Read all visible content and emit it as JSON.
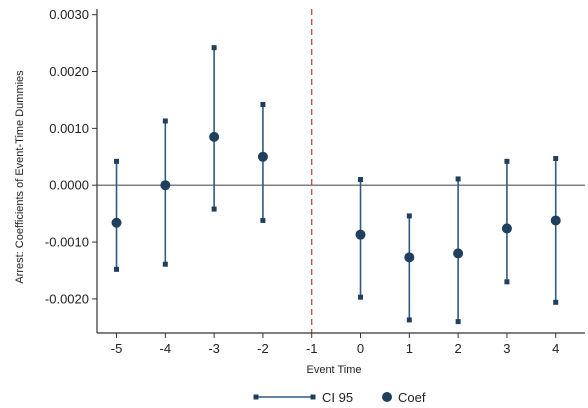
{
  "chart_data": {
    "type": "scatter",
    "title": "",
    "xlabel": "Event Time",
    "ylabel": "Arrest: Coefficients of Event-Time Dummies",
    "x_ticks": [
      "-5",
      "-4",
      "-3",
      "-2",
      "-1",
      "0",
      "1",
      "2",
      "3",
      "4"
    ],
    "y_ticks": [
      "-0.0020",
      "-0.0010",
      "0.0000",
      "0.0010",
      "0.0020",
      "0.0030"
    ],
    "xlim": [
      -5.4,
      4.6
    ],
    "ylim": [
      -0.0026,
      0.0031
    ],
    "x": [
      -5,
      -4,
      -3,
      -2,
      0,
      1,
      2,
      3,
      4
    ],
    "series": [
      {
        "name": "Coef",
        "values": [
          -0.00066,
          0.0,
          0.00085,
          0.0005,
          -0.00087,
          -0.00127,
          -0.0012,
          -0.00076,
          -0.00062
        ]
      },
      {
        "name": "CI 95 lower",
        "values": [
          -0.00148,
          -0.00139,
          -0.00042,
          -0.00062,
          -0.00197,
          -0.00237,
          -0.0024,
          -0.0017,
          -0.00206
        ]
      },
      {
        "name": "CI 95 upper",
        "values": [
          0.00042,
          0.00113,
          0.00242,
          0.00142,
          0.0001,
          -0.00054,
          0.00011,
          0.00042,
          0.00047
        ]
      }
    ],
    "reference_line_x": -1,
    "reference_line_y": 0,
    "colors": {
      "marker": "#1f3f5e",
      "ci": "#2f5a80",
      "vline": "#c0392b",
      "hline": "#555555",
      "axis": "#333333"
    },
    "legend": {
      "position": "bottom",
      "items": [
        "CI 95",
        "Coef"
      ]
    },
    "grid": false
  }
}
